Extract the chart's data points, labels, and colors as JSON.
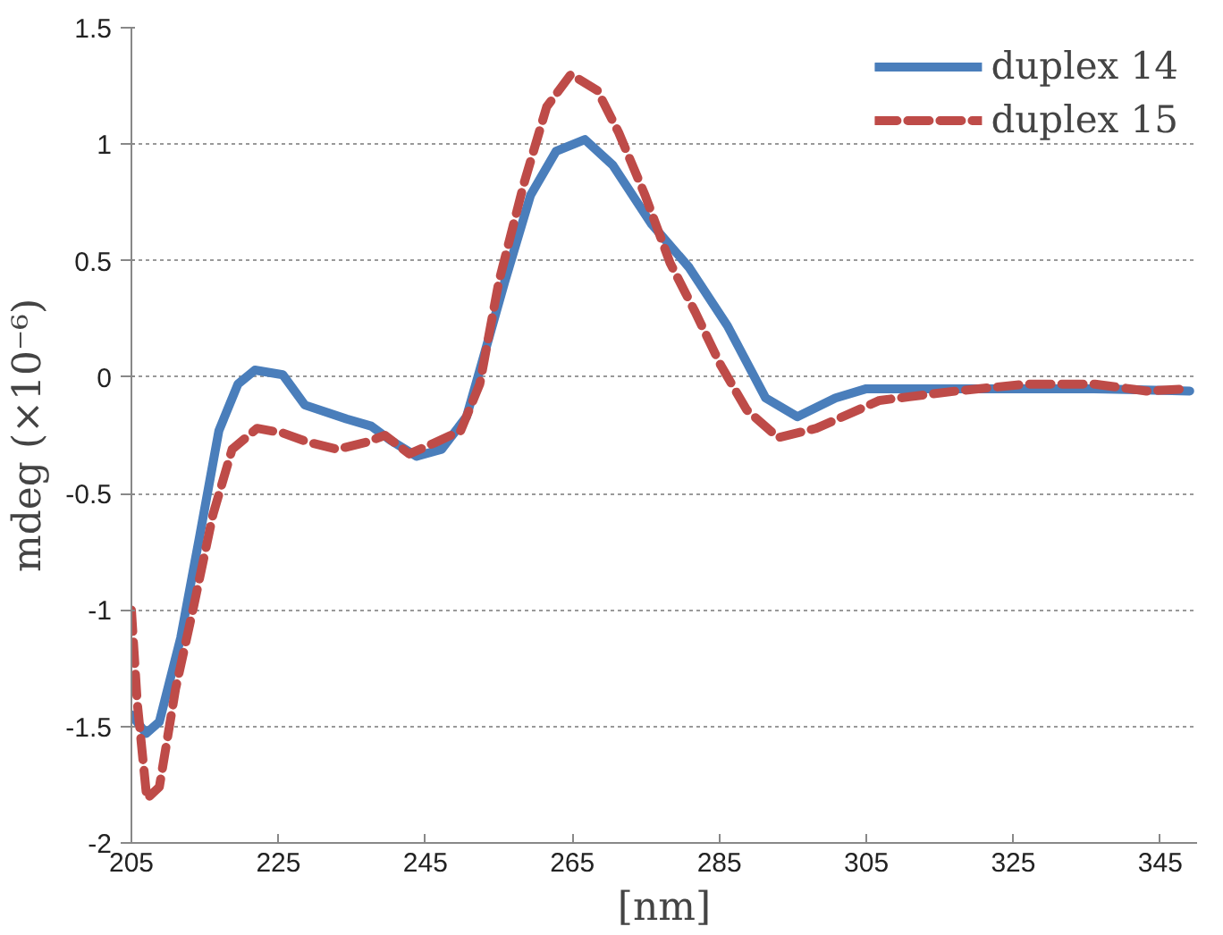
{
  "chart_data": {
    "type": "line",
    "xlabel": "[nm]",
    "ylabel": "mdeg (×10⁻⁶)",
    "xlim": [
      205,
      350
    ],
    "xticks": [
      205,
      225,
      245,
      265,
      285,
      305,
      325,
      345
    ],
    "ylim": [
      -2,
      1.5
    ],
    "yticks": [
      -2,
      -1.5,
      -1,
      -0.5,
      0,
      0.5,
      1,
      1.5
    ],
    "grid": "y",
    "legend": "top right",
    "series": [
      {
        "name": "duplex 14",
        "color": "#4a7ebb",
        "line_style": "solid",
        "x": [
          205,
          207,
          208.8,
          211.7,
          214.3,
          216.9,
          219.5,
          221.8,
          225.6,
          228.6,
          234.3,
          237.6,
          240.2,
          243.8,
          247.2,
          250.6,
          252.4,
          255.8,
          259.3,
          262.8,
          266.7,
          270.5,
          275.7,
          280.9,
          286.1,
          291.3,
          295.6,
          300.8,
          305,
          315.4,
          325.7,
          336,
          349
        ],
        "values": [
          -1.45,
          -1.53,
          -1.48,
          -1.12,
          -0.68,
          -0.23,
          -0.03,
          0.03,
          0.01,
          -0.12,
          -0.18,
          -0.21,
          -0.27,
          -0.34,
          -0.31,
          -0.17,
          0.03,
          0.41,
          0.78,
          0.97,
          1.02,
          0.91,
          0.66,
          0.47,
          0.22,
          -0.09,
          -0.17,
          -0.09,
          -0.05,
          -0.05,
          -0.05,
          -0.05,
          -0.06
        ]
      },
      {
        "name": "duplex 15",
        "color": "#be4b48",
        "line_style": "dashed",
        "x": [
          205,
          205.8,
          207.1,
          208.8,
          211,
          213.5,
          216.1,
          218.7,
          222.1,
          225.6,
          229.1,
          233,
          236.9,
          239.5,
          242.8,
          246.4,
          249.8,
          252.4,
          255,
          258.4,
          261.5,
          264.8,
          268.4,
          271.3,
          274.9,
          278.3,
          281.7,
          285.2,
          288.7,
          293,
          298.2,
          306.8,
          317.2,
          326.8,
          336.1,
          343.1,
          349
        ],
        "values": [
          -1.0,
          -1.4,
          -1.81,
          -1.76,
          -1.34,
          -0.98,
          -0.59,
          -0.31,
          -0.22,
          -0.24,
          -0.28,
          -0.31,
          -0.28,
          -0.25,
          -0.33,
          -0.28,
          -0.23,
          -0.03,
          0.41,
          0.83,
          1.16,
          1.3,
          1.23,
          1.05,
          0.78,
          0.49,
          0.28,
          0.05,
          -0.14,
          -0.26,
          -0.22,
          -0.1,
          -0.06,
          -0.03,
          -0.03,
          -0.06,
          -0.05
        ]
      }
    ]
  }
}
